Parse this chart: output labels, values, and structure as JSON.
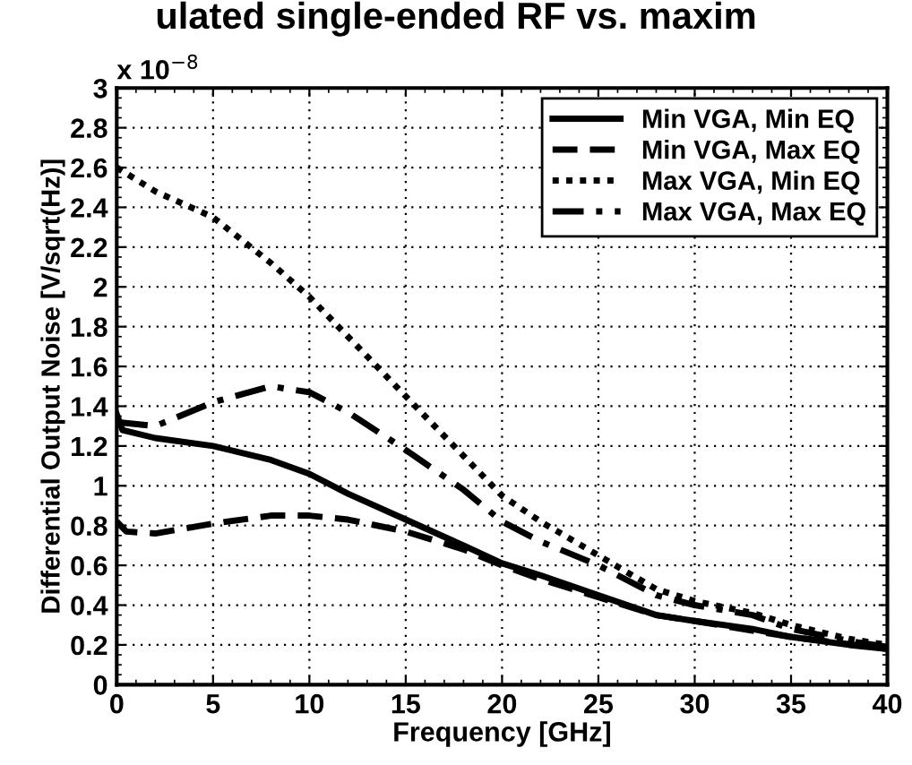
{
  "chart_data": {
    "type": "line",
    "title": "ulated single-ended RF vs. maxim",
    "xlabel": "Frequency [GHz]",
    "ylabel": "Differential Output Noise [V/sqrt(Hz)]",
    "annotations": [
      "x 10$^{−8}$"
    ],
    "xlim": [
      0,
      40
    ],
    "xticks": [
      0,
      5,
      10,
      15,
      20,
      25,
      30,
      35,
      40
    ],
    "ylim": [
      0,
      3
    ],
    "yticks": [
      0,
      0.2,
      0.4,
      0.6,
      0.8,
      1,
      1.2,
      1.4,
      1.6,
      1.8,
      2,
      2.2,
      2.4,
      2.6,
      2.8,
      3
    ],
    "grid": true,
    "legend": "top right",
    "series": [
      {
        "name": "Min VGA, Min EQ",
        "color": "#000000",
        "line_style": "solid",
        "x": [
          0,
          0.3,
          2,
          5,
          8,
          10,
          12,
          15,
          18,
          20,
          22,
          25,
          28,
          30,
          33,
          35,
          38,
          40
        ],
        "values": [
          1.36,
          1.28,
          1.24,
          1.2,
          1.13,
          1.06,
          0.96,
          0.83,
          0.7,
          0.61,
          0.55,
          0.45,
          0.35,
          0.32,
          0.28,
          0.24,
          0.2,
          0.18
        ]
      },
      {
        "name": "Min VGA, Max EQ",
        "color": "#000000",
        "line_style": "dashed",
        "x": [
          0,
          0.5,
          2,
          5,
          8,
          10,
          12,
          15,
          18,
          20,
          22,
          25,
          28,
          30,
          35,
          40
        ],
        "values": [
          0.82,
          0.77,
          0.76,
          0.81,
          0.85,
          0.85,
          0.83,
          0.77,
          0.68,
          0.6,
          0.53,
          0.44,
          0.35,
          0.32,
          0.24,
          0.18
        ]
      },
      {
        "name": "Max VGA, Min EQ",
        "color": "#000000",
        "line_style": "dotted",
        "x": [
          0,
          2,
          5,
          8,
          10,
          12,
          15,
          18,
          20,
          22,
          25,
          28,
          30,
          33,
          35,
          38,
          40
        ],
        "values": [
          2.6,
          2.48,
          2.35,
          2.12,
          1.95,
          1.75,
          1.45,
          1.15,
          0.95,
          0.82,
          0.65,
          0.48,
          0.42,
          0.36,
          0.3,
          0.23,
          0.2
        ]
      },
      {
        "name": "Max VGA, Max EQ",
        "color": "#000000",
        "line_style": "dashdot",
        "x": [
          0,
          2,
          5,
          8,
          10,
          12,
          15,
          18,
          20,
          22,
          25,
          28,
          30,
          33,
          35,
          38,
          40
        ],
        "values": [
          1.32,
          1.3,
          1.42,
          1.5,
          1.47,
          1.37,
          1.18,
          0.98,
          0.82,
          0.72,
          0.6,
          0.45,
          0.4,
          0.35,
          0.28,
          0.22,
          0.19
        ]
      }
    ]
  }
}
